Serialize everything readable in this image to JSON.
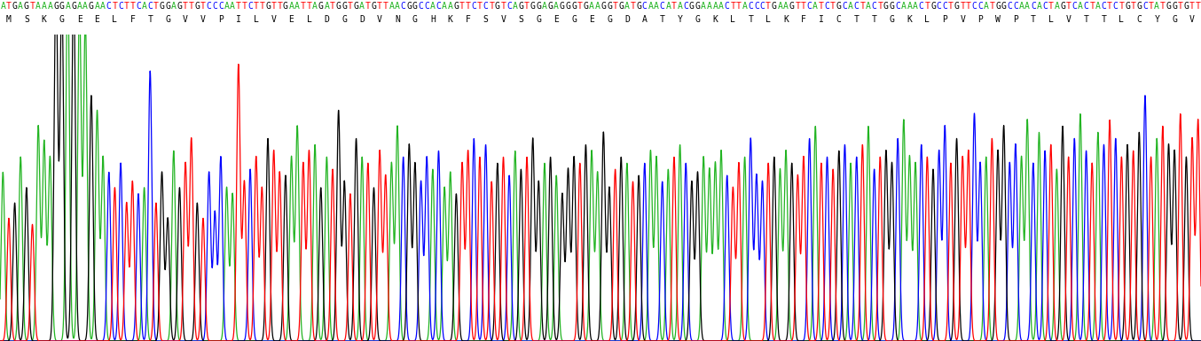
{
  "chart_data": {
    "type": "chromatogram",
    "sequence": "ATGAGTAAAGGAGAAGAACTCTTCACTGGAGTTGTCCCAATTCTTGTTGAATTAGATGGTGATGTTAACGGCCACAAGTTCTCTGTCAGTGGAGAGGGTGAAGGTGATGCAACATACGGAAAACTTACCCTGAAGTTCATCTGCACTACTGGCAAACTGCCTGTTCCATGGCCAACACTAGTCACTACTCTGTGCTATGGTGTT",
    "translation": [
      "M",
      "S",
      "K",
      "G",
      "E",
      "E",
      "L",
      "F",
      "T",
      "G",
      "V",
      "V",
      "P",
      "I",
      "L",
      "V",
      "E",
      "L",
      "D",
      "G",
      "D",
      "V",
      "N",
      "G",
      "H",
      "K",
      "F",
      "S",
      "V",
      "S",
      "G",
      "E",
      "G",
      "E",
      "G",
      "D",
      "A",
      "T",
      "Y",
      "G",
      "K",
      "L",
      "T",
      "L",
      "K",
      "F",
      "I",
      "C",
      "T",
      "T",
      "G",
      "K",
      "L",
      "P",
      "V",
      "P",
      "W",
      "P",
      "T",
      "L",
      "V",
      "T",
      "T",
      "L",
      "C",
      "Y",
      "G",
      "V"
    ],
    "peak_heights": [
      55,
      40,
      45,
      60,
      50,
      38,
      70,
      65,
      60,
      120,
      115,
      120,
      120,
      110,
      105,
      80,
      75,
      60,
      55,
      50,
      58,
      45,
      52,
      48,
      50,
      88,
      45,
      55,
      40,
      62,
      50,
      58,
      66,
      45,
      40,
      55,
      42,
      60,
      50,
      48,
      90,
      52,
      56,
      60,
      50,
      66,
      62,
      55,
      54,
      60,
      70,
      58,
      62,
      64,
      50,
      60,
      56,
      75,
      52,
      48,
      66,
      60,
      58,
      50,
      62,
      54,
      58,
      70,
      60,
      64,
      58,
      52,
      60,
      56,
      62,
      50,
      55,
      48,
      58,
      62,
      66,
      60,
      64,
      52,
      58,
      60,
      54,
      62,
      56,
      60,
      66,
      52,
      58,
      60,
      54,
      48,
      56,
      60,
      58,
      64,
      62,
      55,
      68,
      50,
      56,
      60,
      58,
      52,
      54,
      58,
      62,
      60,
      52,
      56,
      60,
      64,
      58,
      52,
      55,
      60,
      56,
      58,
      62,
      54,
      50,
      58,
      60,
      66,
      54,
      52,
      58,
      60,
      56,
      62,
      58,
      54,
      60,
      66,
      70,
      58,
      60,
      56,
      62,
      64,
      58,
      60,
      64,
      70,
      56,
      60,
      62,
      58,
      66,
      72,
      60,
      58,
      64,
      60,
      56,
      62,
      70,
      58,
      66,
      60,
      62,
      74,
      58,
      60,
      66,
      62,
      70,
      58,
      64,
      60,
      72,
      58,
      68,
      62,
      64,
      56,
      70,
      60,
      66,
      74,
      62,
      58,
      68,
      64,
      72,
      66,
      60,
      64,
      62,
      68,
      80,
      60,
      66,
      70,
      64,
      62,
      74,
      60,
      66,
      72
    ],
    "base_colors": {
      "A": "#22b422",
      "C": "#0000ff",
      "G": "#000000",
      "T": "#ff0000"
    },
    "ylim": [
      0,
      100
    ],
    "tick_labels": false
  }
}
